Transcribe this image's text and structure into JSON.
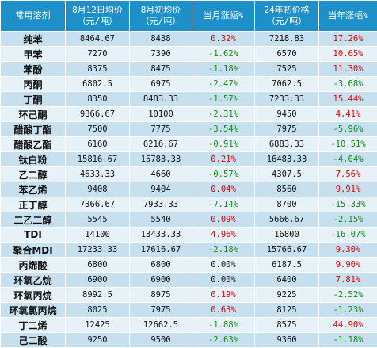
{
  "headers": [
    [
      "常用溶剂"
    ],
    [
      "8月12日均价",
      "（元/吨）"
    ],
    [
      "8月初均价",
      "（元/吨）"
    ],
    [
      "当月涨幅%"
    ],
    [
      "24年初价格",
      "（元/吨）"
    ],
    [
      "当年涨幅%"
    ]
  ],
  "rows": [
    {
      "name": "纯苯",
      "aug12": "8464.67",
      "aug_start": "8438",
      "mtd": "0.32%",
      "year_start": "7218.83",
      "ytd": "17.26%",
      "mtd_sign": "pos",
      "ytd_sign": "pos"
    },
    {
      "name": "甲苯",
      "aug12": "7270",
      "aug_start": "7390",
      "mtd": "-1.62%",
      "year_start": "6570",
      "ytd": "10.65%",
      "mtd_sign": "neg",
      "ytd_sign": "pos"
    },
    {
      "name": "苯酚",
      "aug12": "8375",
      "aug_start": "8475",
      "mtd": "-1.18%",
      "year_start": "7525",
      "ytd": "11.30%",
      "mtd_sign": "neg",
      "ytd_sign": "pos"
    },
    {
      "name": "丙酮",
      "aug12": "6802.5",
      "aug_start": "6975",
      "mtd": "-2.47%",
      "year_start": "7062.5",
      "ytd": "-3.68%",
      "mtd_sign": "neg",
      "ytd_sign": "neg"
    },
    {
      "name": "丁酮",
      "aug12": "8350",
      "aug_start": "8483.33",
      "mtd": "-1.57%",
      "year_start": "7233.33",
      "ytd": "15.44%",
      "mtd_sign": "neg",
      "ytd_sign": "pos"
    },
    {
      "name": "环己酮",
      "aug12": "9866.67",
      "aug_start": "10100",
      "mtd": "-2.31%",
      "year_start": "9450",
      "ytd": "4.41%",
      "mtd_sign": "neg",
      "ytd_sign": "pos"
    },
    {
      "name": "醋酸丁酯",
      "aug12": "7500",
      "aug_start": "7775",
      "mtd": "-3.54%",
      "year_start": "7975",
      "ytd": "-5.96%",
      "mtd_sign": "neg",
      "ytd_sign": "neg"
    },
    {
      "name": "醋酸乙酯",
      "aug12": "6160",
      "aug_start": "6216.67",
      "mtd": "-0.91%",
      "year_start": "6883.33",
      "ytd": "-10.51%",
      "mtd_sign": "neg",
      "ytd_sign": "neg"
    },
    {
      "name": "钛白粉",
      "aug12": "15816.67",
      "aug_start": "15783.33",
      "mtd": "0.21%",
      "year_start": "16483.33",
      "ytd": "-4.04%",
      "mtd_sign": "pos",
      "ytd_sign": "neg"
    },
    {
      "name": "乙二醇",
      "aug12": "4633.33",
      "aug_start": "4660",
      "mtd": "-0.57%",
      "year_start": "4307.5",
      "ytd": "7.56%",
      "mtd_sign": "neg",
      "ytd_sign": "pos"
    },
    {
      "name": "苯乙烯",
      "aug12": "9408",
      "aug_start": "9404",
      "mtd": "0.04%",
      "year_start": "8560",
      "ytd": "9.91%",
      "mtd_sign": "pos",
      "ytd_sign": "pos"
    },
    {
      "name": "正丁醇",
      "aug12": "7366.67",
      "aug_start": "7933.33",
      "mtd": "-7.14%",
      "year_start": "8700",
      "ytd": "-15.33%",
      "mtd_sign": "neg",
      "ytd_sign": "neg"
    },
    {
      "name": "二乙二醇",
      "aug12": "5545",
      "aug_start": "5540",
      "mtd": "0.09%",
      "year_start": "5666.67",
      "ytd": "-2.15%",
      "mtd_sign": "pos",
      "ytd_sign": "neg"
    },
    {
      "name": "TDI",
      "aug12": "14100",
      "aug_start": "13433.33",
      "mtd": "4.96%",
      "year_start": "16800",
      "ytd": "-16.07%",
      "mtd_sign": "pos",
      "ytd_sign": "neg"
    },
    {
      "name": "聚合MDI",
      "aug12": "17233.33",
      "aug_start": "17616.67",
      "mtd": "-2.18%",
      "year_start": "15766.67",
      "ytd": "9.30%",
      "mtd_sign": "neg",
      "ytd_sign": "pos"
    },
    {
      "name": "丙烯酸",
      "aug12": "6800",
      "aug_start": "6800",
      "mtd": "0.00%",
      "year_start": "6187.5",
      "ytd": "9.90%",
      "mtd_sign": "zero",
      "ytd_sign": "pos"
    },
    {
      "name": "环氧乙烷",
      "aug12": "6900",
      "aug_start": "6900",
      "mtd": "0.00%",
      "year_start": "6400",
      "ytd": "7.81%",
      "mtd_sign": "zero",
      "ytd_sign": "pos"
    },
    {
      "name": "环氧丙烷",
      "aug12": "8992.5",
      "aug_start": "8975",
      "mtd": "0.19%",
      "year_start": "9225",
      "ytd": "-2.52%",
      "mtd_sign": "pos",
      "ytd_sign": "neg"
    },
    {
      "name": "环氧氯丙烷",
      "aug12": "8025",
      "aug_start": "7975",
      "mtd": "0.63%",
      "year_start": "8125",
      "ytd": "-1.23%",
      "mtd_sign": "pos",
      "ytd_sign": "neg"
    },
    {
      "name": "丁二烯",
      "aug12": "12425",
      "aug_start": "12662.5",
      "mtd": "-1.88%",
      "year_start": "8575",
      "ytd": "44.90%",
      "mtd_sign": "neg",
      "ytd_sign": "pos"
    },
    {
      "name": "己二酸",
      "aug12": "9250",
      "aug_start": "9500",
      "mtd": "-2.63%",
      "year_start": "9360",
      "ytd": "-1.18%",
      "mtd_sign": "neg",
      "ytd_sign": "neg"
    }
  ],
  "colors": {
    "header_bg": "#1e90c9",
    "row_odd": "#c6e0ef",
    "row_even": "#e6f1f8",
    "positive": "#e00000",
    "negative": "#138a13"
  }
}
